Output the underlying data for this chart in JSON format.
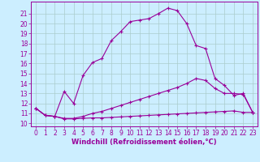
{
  "background_color": "#cceeff",
  "grid_color": "#aacccc",
  "line_color": "#990099",
  "xlabel": "Windchill (Refroidissement éolien,°C)",
  "ylabel_ticks": [
    10,
    11,
    12,
    13,
    14,
    15,
    16,
    17,
    18,
    19,
    20,
    21
  ],
  "xlabel_ticks": [
    0,
    1,
    2,
    3,
    4,
    5,
    6,
    7,
    8,
    9,
    10,
    11,
    12,
    13,
    14,
    15,
    16,
    17,
    18,
    19,
    20,
    21,
    22,
    23
  ],
  "xlim": [
    -0.5,
    23.5
  ],
  "ylim": [
    9.7,
    22.2
  ],
  "curve1_x": [
    0,
    1,
    2,
    3,
    4,
    5,
    6,
    7,
    8,
    9,
    10,
    11,
    12,
    13,
    14,
    15,
    16,
    17,
    18,
    19,
    20,
    21,
    22,
    23
  ],
  "curve1_y": [
    11.5,
    10.8,
    10.7,
    13.2,
    12.0,
    14.8,
    16.1,
    16.5,
    18.3,
    19.2,
    20.2,
    20.35,
    20.5,
    21.0,
    21.55,
    21.3,
    20.0,
    17.8,
    17.5,
    14.5,
    13.8,
    12.8,
    13.0,
    11.1
  ],
  "curve2_x": [
    0,
    1,
    2,
    3,
    4,
    5,
    6,
    7,
    8,
    9,
    10,
    11,
    12,
    13,
    14,
    15,
    16,
    17,
    18,
    19,
    20,
    21,
    22,
    23
  ],
  "curve2_y": [
    11.5,
    10.8,
    10.7,
    10.45,
    10.45,
    10.5,
    10.55,
    10.55,
    10.6,
    10.65,
    10.7,
    10.75,
    10.8,
    10.85,
    10.9,
    10.95,
    11.0,
    11.05,
    11.1,
    11.15,
    11.2,
    11.25,
    11.1,
    11.1
  ],
  "curve3_x": [
    0,
    1,
    2,
    3,
    4,
    5,
    6,
    7,
    8,
    9,
    10,
    11,
    12,
    13,
    14,
    15,
    16,
    17,
    18,
    19,
    20,
    21,
    22,
    23
  ],
  "curve3_y": [
    11.5,
    10.8,
    10.7,
    10.5,
    10.5,
    10.7,
    11.0,
    11.2,
    11.5,
    11.8,
    12.1,
    12.4,
    12.7,
    13.0,
    13.3,
    13.6,
    14.0,
    14.5,
    14.3,
    13.5,
    13.0,
    13.0,
    12.9,
    11.1
  ],
  "tick_fontsize": 5.5,
  "xlabel_fontsize": 6,
  "xlabel_fontweight": "bold"
}
